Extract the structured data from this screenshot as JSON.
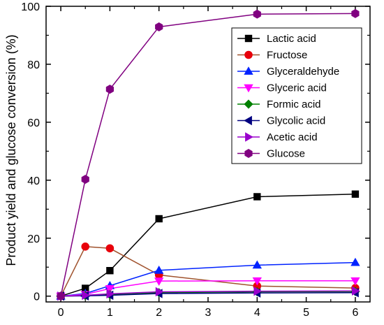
{
  "chart_data": {
    "type": "line",
    "title": "",
    "xlabel": "",
    "ylabel": "Product yield and glucose conversion (%)",
    "x": [
      0,
      0.5,
      1,
      2,
      4,
      6
    ],
    "xlim": [
      -0.3,
      6.3
    ],
    "ylim": [
      -2,
      100
    ],
    "x_ticks": [
      "0",
      "1",
      "2",
      "3",
      "4",
      "5",
      "6"
    ],
    "y_ticks": [
      "0",
      "20",
      "40",
      "60",
      "80",
      "100"
    ],
    "grid": false,
    "legend_position": "top-right",
    "series": [
      {
        "name": "Lactic acid",
        "color": "#000000",
        "marker": "square",
        "values": [
          0,
          2.7,
          8.8,
          26.7,
          34.3,
          35.2
        ]
      },
      {
        "name": "Fructose",
        "color": "#e8000b",
        "line_color": "#a0522d",
        "marker": "circle",
        "values": [
          0,
          17.1,
          16.5,
          7.3,
          3.5,
          2.8
        ]
      },
      {
        "name": "Glyceraldehyde",
        "color": "#0022ff",
        "marker": "triangle-up",
        "values": [
          0,
          0.9,
          3.6,
          8.9,
          10.7,
          11.6
        ]
      },
      {
        "name": "Glyceric acid",
        "color": "#ff00ff",
        "marker": "triangle-down",
        "values": [
          0,
          0.6,
          2.6,
          5.2,
          5.3,
          5.3
        ]
      },
      {
        "name": "Formic acid",
        "color": "#008000",
        "marker": "diamond",
        "values": [
          0,
          0.2,
          0.5,
          1.2,
          1.5,
          1.6
        ]
      },
      {
        "name": "Glycolic acid",
        "color": "#000080",
        "marker": "triangle-left",
        "values": [
          0,
          0.1,
          0.3,
          0.9,
          1.1,
          1.2
        ]
      },
      {
        "name": "Acetic acid",
        "color": "#9900cc",
        "marker": "triangle-right",
        "values": [
          0,
          0.3,
          0.8,
          1.5,
          1.7,
          1.8
        ]
      },
      {
        "name": "Glucose",
        "color": "#800080",
        "marker": "hexagon",
        "values": [
          0,
          40.3,
          71.4,
          92.9,
          97.3,
          97.5
        ]
      }
    ]
  }
}
